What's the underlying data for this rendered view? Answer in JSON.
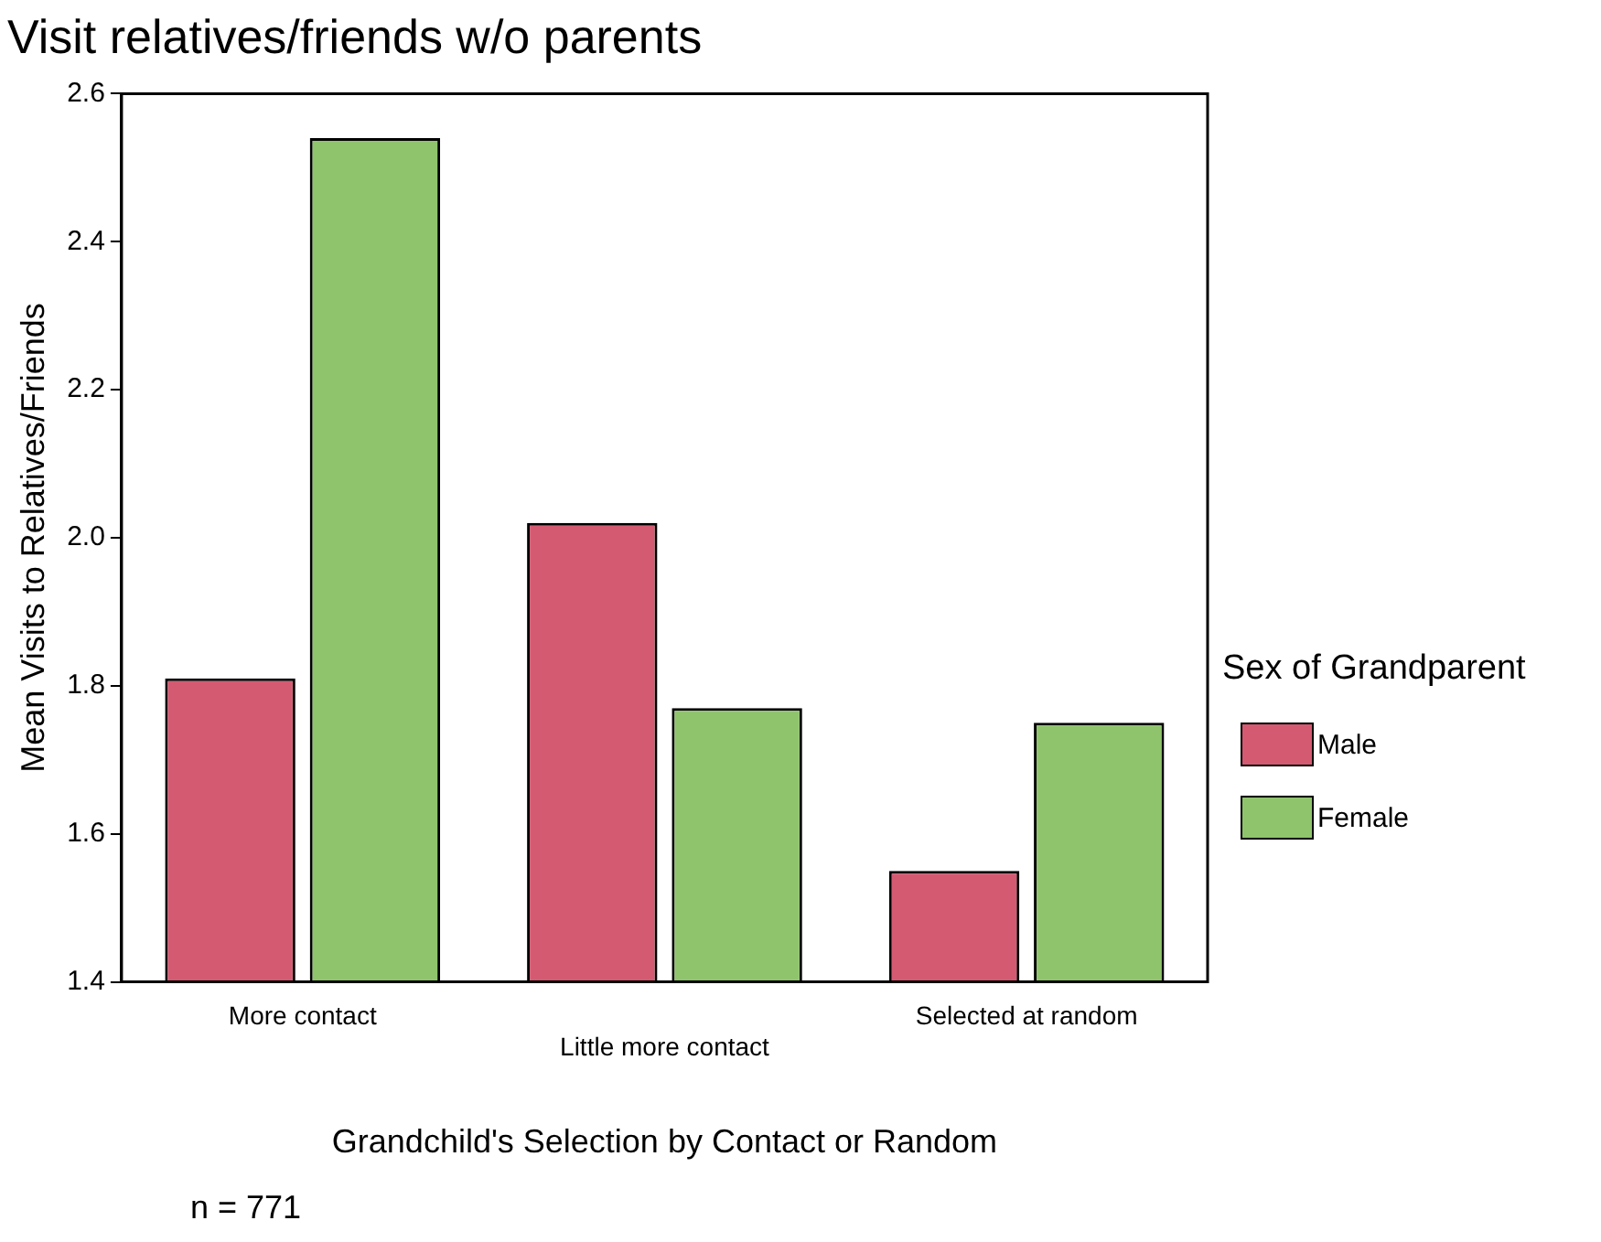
{
  "chart_data": {
    "type": "bar",
    "title": "Visit relatives/friends w/o parents",
    "xlabel": "Grandchild's Selection by Contact or Random",
    "ylabel": "Mean Visits to Relatives/Friends",
    "legend_title": "Sex of Grandparent",
    "categories": [
      "More contact",
      "Little more contact",
      "Selected at random"
    ],
    "series": [
      {
        "name": "Male",
        "color": "#d45a72",
        "values": [
          1.81,
          2.02,
          1.55
        ]
      },
      {
        "name": "Female",
        "color": "#8fc46c",
        "values": [
          2.54,
          1.77,
          1.75
        ]
      }
    ],
    "ylim": [
      1.4,
      2.6
    ],
    "yticks": [
      1.4,
      1.6,
      1.8,
      {
        "value": 2,
        "label": "2.0"
      },
      2.2,
      2.4,
      2.6
    ],
    "grid": false,
    "legend": "right",
    "annotations": [
      "n = 771"
    ]
  }
}
